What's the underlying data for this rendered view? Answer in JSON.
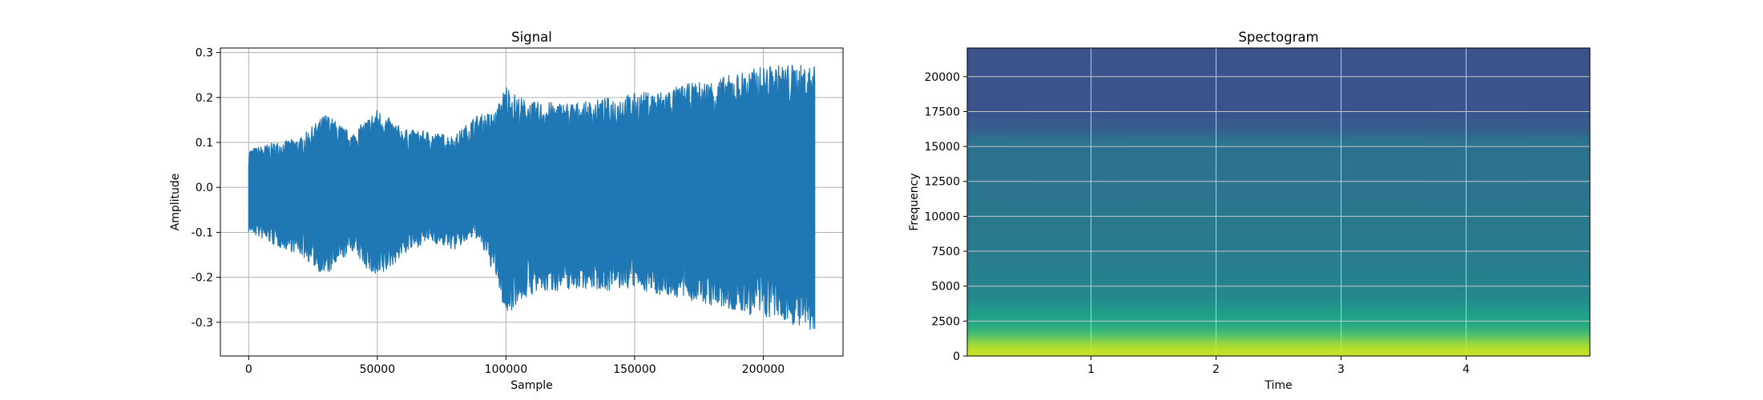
{
  "chart_data": [
    {
      "type": "line",
      "title": "Signal",
      "xlabel": "Sample",
      "ylabel": "Amplitude",
      "xlim": [
        -11000,
        231000
      ],
      "ylim": [
        -0.375,
        0.31
      ],
      "x_ticks": [
        0,
        50000,
        100000,
        150000,
        200000
      ],
      "y_ticks": [
        -0.3,
        -0.2,
        -0.1,
        0.0,
        0.1,
        0.2,
        0.3
      ],
      "grid": true,
      "series": [
        {
          "color": "#1f77b4",
          "envelope": {
            "x": [
              0,
              10000,
              20000,
              30000,
              40000,
              50000,
              60000,
              70000,
              80000,
              88000,
              92000,
              96000,
              100000,
              104000,
              110000,
              120000,
              130000,
              140000,
              150000,
              160000,
              170000,
              180000,
              190000,
              200000,
              210000,
              220000
            ],
            "upper": [
              0.085,
              0.1,
              0.11,
              0.165,
              0.12,
              0.175,
              0.13,
              0.125,
              0.115,
              0.16,
              0.165,
              0.17,
              0.23,
              0.205,
              0.19,
              0.19,
              0.19,
              0.2,
              0.21,
              0.215,
              0.23,
              0.24,
              0.255,
              0.27,
              0.275,
              0.27
            ],
            "lower": [
              -0.1,
              -0.13,
              -0.15,
              -0.2,
              -0.14,
              -0.21,
              -0.15,
              -0.12,
              -0.14,
              -0.11,
              -0.15,
              -0.2,
              -0.29,
              -0.26,
              -0.24,
              -0.23,
              -0.225,
              -0.23,
              -0.225,
              -0.24,
              -0.25,
              -0.265,
              -0.28,
              -0.29,
              -0.3,
              -0.335
            ]
          }
        }
      ]
    },
    {
      "type": "heatmap",
      "title": "Spectogram",
      "xlabel": "Time",
      "ylabel": "Frequency",
      "xlim": [
        0.01,
        4.99
      ],
      "ylim": [
        0,
        22050
      ],
      "x_ticks": [
        1,
        2,
        3,
        4
      ],
      "y_ticks": [
        0,
        2500,
        5000,
        7500,
        10000,
        12500,
        15000,
        17500,
        20000
      ],
      "grid": true,
      "colormap": "viridis",
      "intensity_by_frequency": {
        "frequency": [
          0,
          500,
          1000,
          1500,
          2000,
          2500,
          3000,
          3500,
          4000,
          5000,
          6000,
          8000,
          10000,
          12000,
          14000,
          15500,
          16200,
          17500,
          22050
        ],
        "level": [
          0.92,
          0.9,
          0.82,
          0.72,
          0.63,
          0.58,
          0.56,
          0.52,
          0.48,
          0.45,
          0.43,
          0.41,
          0.4,
          0.39,
          0.38,
          0.37,
          0.3,
          0.26,
          0.25
        ]
      }
    }
  ]
}
